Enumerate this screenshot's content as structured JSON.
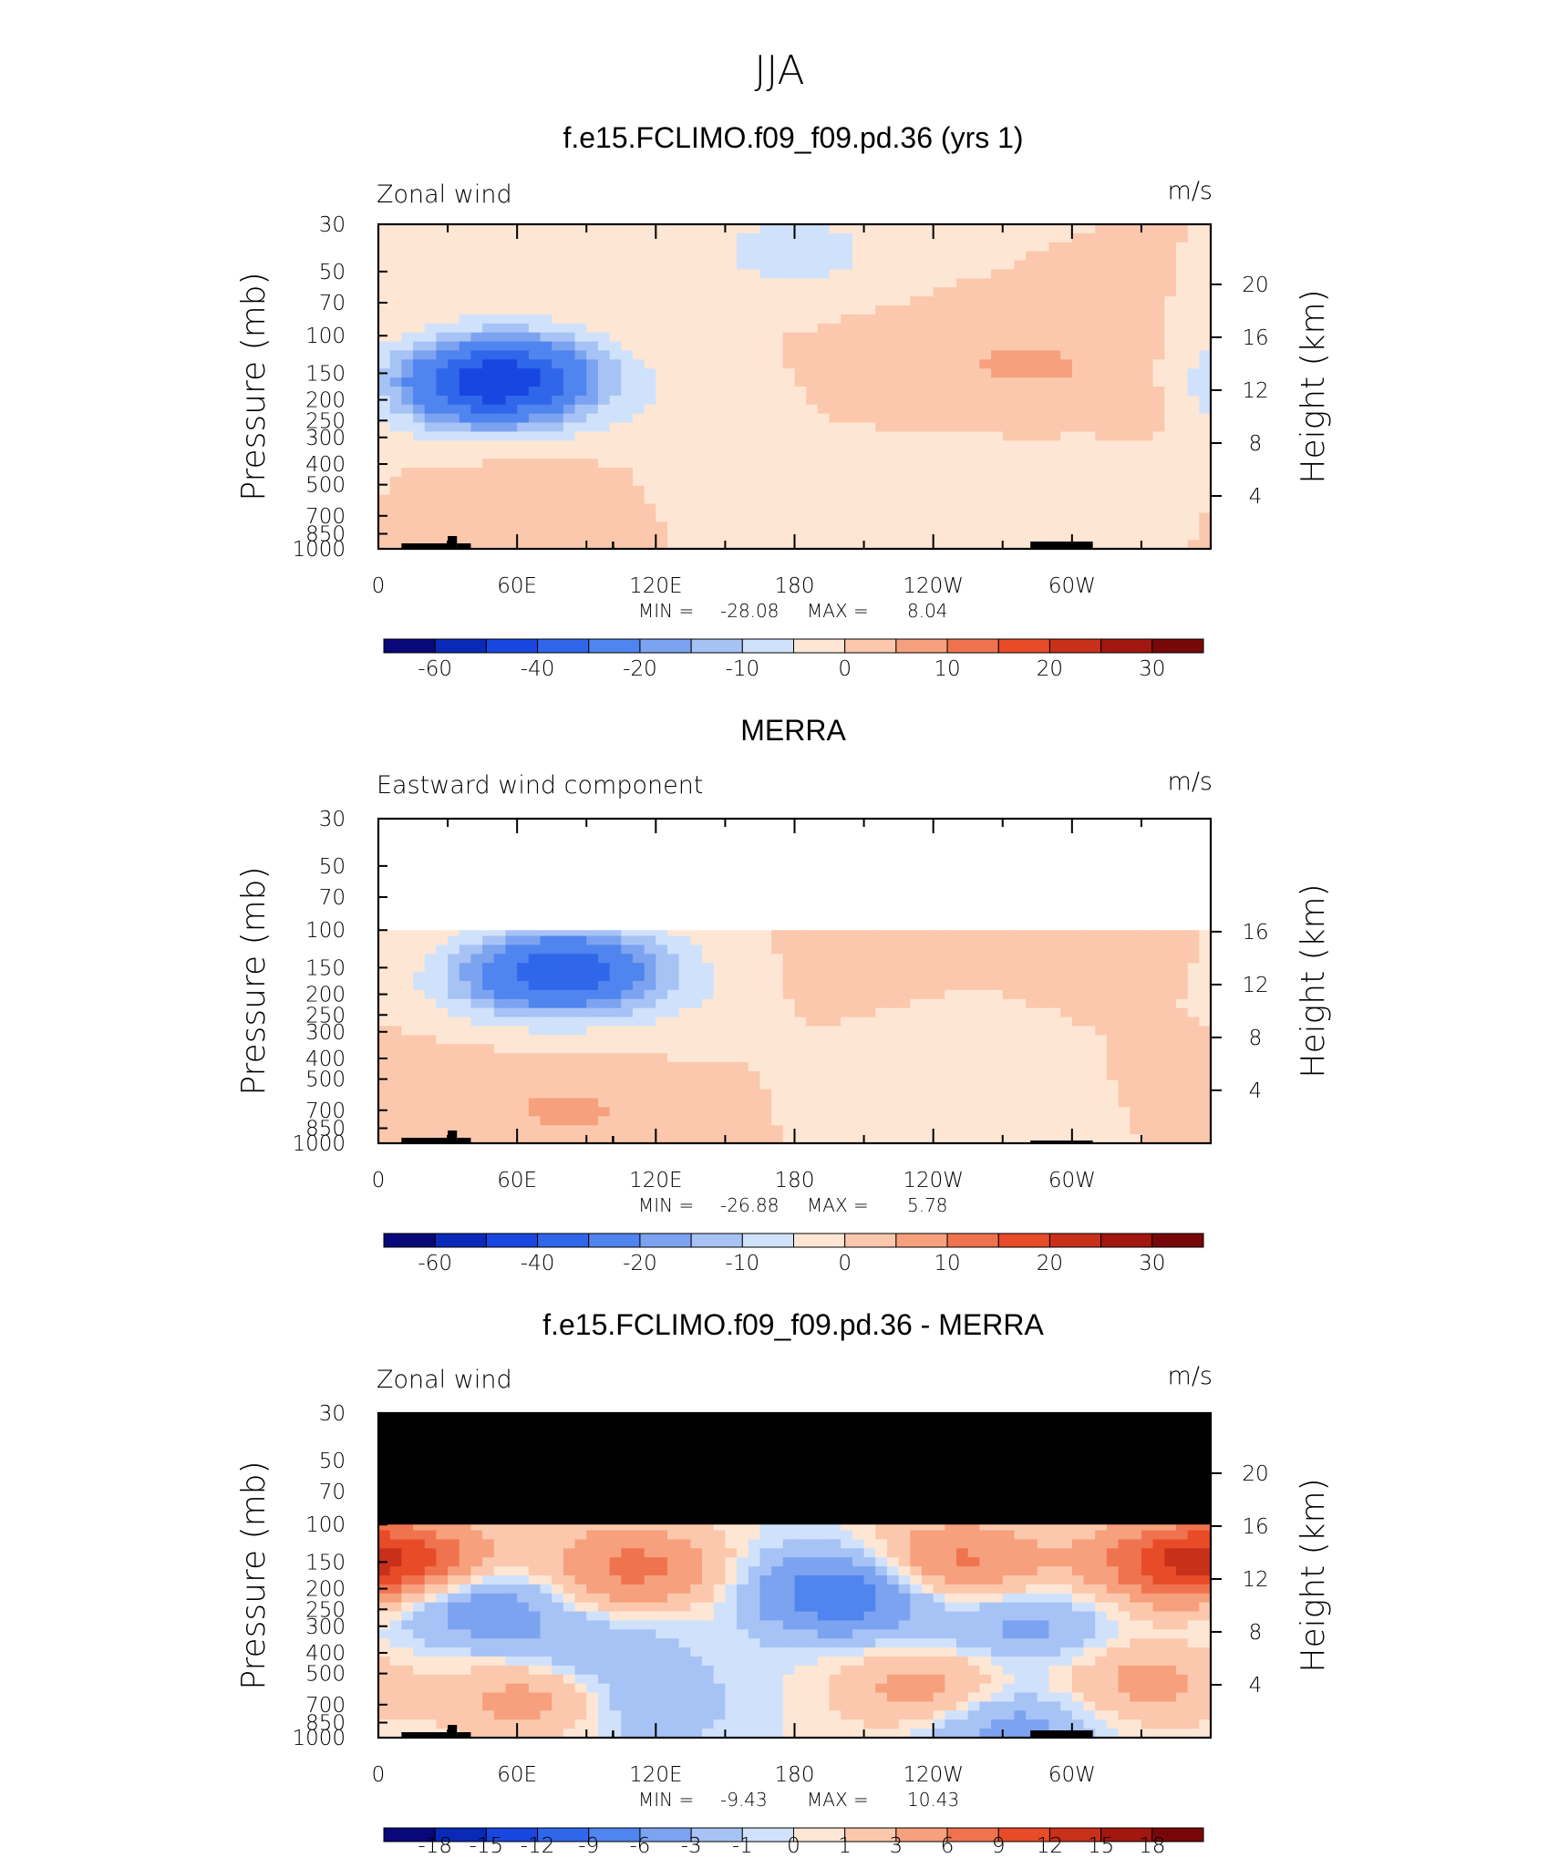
{
  "figure": {
    "title": "JJA"
  },
  "colors": {
    "full_scale": [
      "#08087a",
      "#0a29b8",
      "#1846e0",
      "#2f66ea",
      "#5084ee",
      "#7ca3f0",
      "#a7c3f5",
      "#d0e2fb",
      "#fde6d4",
      "#fbc8ad",
      "#f6a07d",
      "#f0734f",
      "#e84b28",
      "#c9301a",
      "#a2170f",
      "#780808"
    ],
    "diff_scale": [
      "#08087a",
      "#0a29b8",
      "#1846e0",
      "#2f66ea",
      "#5084ee",
      "#7ca3f0",
      "#a7c3f5",
      "#d0e2fb",
      "#fde6d4",
      "#fbc8ad",
      "#f6a07d",
      "#f0734f",
      "#e84b28",
      "#c9301a",
      "#a2170f",
      "#780808"
    ],
    "missing_fill": "#000000",
    "topography": "#000000"
  },
  "chart_data": [
    {
      "type": "heatmap",
      "title": "f.e15.FCLIMO.f09_f09.pd.36 (yrs 1)",
      "left_label": "Zonal wind",
      "right_label": "m/s",
      "ylabel": "Pressure (mb)",
      "ylabel_right": "Height (km)",
      "xticks": [
        "0",
        "60E",
        "120E",
        "180",
        "120W",
        "60W"
      ],
      "yticks": [
        "30",
        "50",
        "70",
        "100",
        "150",
        "200",
        "250",
        "300",
        "400",
        "500",
        "700",
        "850",
        "1000"
      ],
      "height_ticks": [
        "20",
        "16",
        "12",
        "8",
        "4"
      ],
      "stats": {
        "min_label": "MIN =",
        "min": "-28.08",
        "max_label": "MAX =",
        "max": "8.04"
      },
      "colorbar_labels": [
        "-60",
        "-40",
        "-20",
        "-10",
        "0",
        "10",
        "20",
        "30"
      ],
      "xlim": [
        0,
        360
      ],
      "ylim": [
        1000,
        30
      ],
      "yscale": "log",
      "data_top": 30,
      "features": [
        {
          "lon": 180,
          "p": 40,
          "v": -8
        },
        {
          "lon": 240,
          "p": 130,
          "v": 3
        },
        {
          "lon": 290,
          "p": 140,
          "v": 5
        },
        {
          "lon": 60,
          "p": 150,
          "v": -25
        },
        {
          "lon": 50,
          "p": 180,
          "v": -18
        },
        {
          "lon": 30,
          "p": 170,
          "v": -12
        },
        {
          "lon": 120,
          "p": 200,
          "v": -3
        },
        {
          "lon": 60,
          "p": 650,
          "v": 5
        },
        {
          "lon": 240,
          "p": 600,
          "v": -4
        },
        {
          "lon": 315,
          "p": 500,
          "v": -2
        },
        {
          "lon": 160,
          "p": 500,
          "v": -2
        },
        {
          "lon": 350,
          "p": 200,
          "v": 2
        }
      ]
    },
    {
      "type": "heatmap",
      "title": "MERRA",
      "left_label": "Eastward wind component",
      "right_label": "m/s",
      "ylabel": "Pressure (mb)",
      "ylabel_right": "Height (km)",
      "xticks": [
        "0",
        "60E",
        "120E",
        "180",
        "120W",
        "60W"
      ],
      "yticks": [
        "30",
        "50",
        "70",
        "100",
        "150",
        "200",
        "250",
        "300",
        "400",
        "500",
        "700",
        "850",
        "1000"
      ],
      "height_ticks": [
        "16",
        "12",
        "8",
        "4"
      ],
      "stats": {
        "min_label": "MIN =",
        "min": "-26.88",
        "max_label": "MAX =",
        "max": "5.78"
      },
      "colorbar_labels": [
        "-60",
        "-40",
        "-20",
        "-10",
        "0",
        "10",
        "20",
        "30"
      ],
      "xlim": [
        0,
        360
      ],
      "ylim": [
        1000,
        30
      ],
      "yscale": "log",
      "data_top": 100,
      "features": [
        {
          "lon": 85,
          "p": 150,
          "v": -25
        },
        {
          "lon": 60,
          "p": 170,
          "v": -15
        },
        {
          "lon": 120,
          "p": 180,
          "v": -5
        },
        {
          "lon": 220,
          "p": 150,
          "v": 3
        },
        {
          "lon": 300,
          "p": 130,
          "v": 4
        },
        {
          "lon": 70,
          "p": 650,
          "v": 4
        },
        {
          "lon": 100,
          "p": 800,
          "v": 3
        },
        {
          "lon": 240,
          "p": 600,
          "v": -3
        },
        {
          "lon": 250,
          "p": 250,
          "v": -2
        },
        {
          "lon": 20,
          "p": 400,
          "v": 1
        }
      ]
    },
    {
      "type": "heatmap",
      "title": "f.e15.FCLIMO.f09_f09.pd.36 - MERRA",
      "left_label": "Zonal wind",
      "right_label": "m/s",
      "ylabel": "Pressure (mb)",
      "ylabel_right": "Height (km)",
      "xticks": [
        "0",
        "60E",
        "120E",
        "180",
        "120W",
        "60W"
      ],
      "yticks": [
        "30",
        "50",
        "70",
        "100",
        "150",
        "200",
        "250",
        "300",
        "400",
        "500",
        "700",
        "850",
        "1000"
      ],
      "height_ticks": [
        "20",
        "16",
        "12",
        "8",
        "4"
      ],
      "stats": {
        "min_label": "MIN =",
        "min": "-9.43",
        "max_label": "MAX =",
        "max": "10.43"
      },
      "colorbar_labels": [
        "-18",
        "-15",
        "-12",
        "-9",
        "-6",
        "-3",
        "-1",
        "0",
        "1",
        "3",
        "6",
        "9",
        "12",
        "15",
        "18"
      ],
      "xlim": [
        0,
        360
      ],
      "ylim": [
        1000,
        30
      ],
      "yscale": "log",
      "data_top": 100,
      "features": [
        {
          "lon": 15,
          "p": 150,
          "v": 8
        },
        {
          "lon": 110,
          "p": 160,
          "v": 7
        },
        {
          "lon": 250,
          "p": 150,
          "v": 7
        },
        {
          "lon": 345,
          "p": 150,
          "v": 9
        },
        {
          "lon": 200,
          "p": 210,
          "v": -9
        },
        {
          "lon": 40,
          "p": 230,
          "v": -6
        },
        {
          "lon": 280,
          "p": 300,
          "v": -4
        },
        {
          "lon": 90,
          "p": 400,
          "v": -3
        },
        {
          "lon": 70,
          "p": 650,
          "v": 5
        },
        {
          "lon": 240,
          "p": 600,
          "v": 5
        },
        {
          "lon": 330,
          "p": 550,
          "v": 4
        },
        {
          "lon": 270,
          "p": 850,
          "v": -5
        },
        {
          "lon": 110,
          "p": 700,
          "v": -3
        }
      ]
    }
  ]
}
